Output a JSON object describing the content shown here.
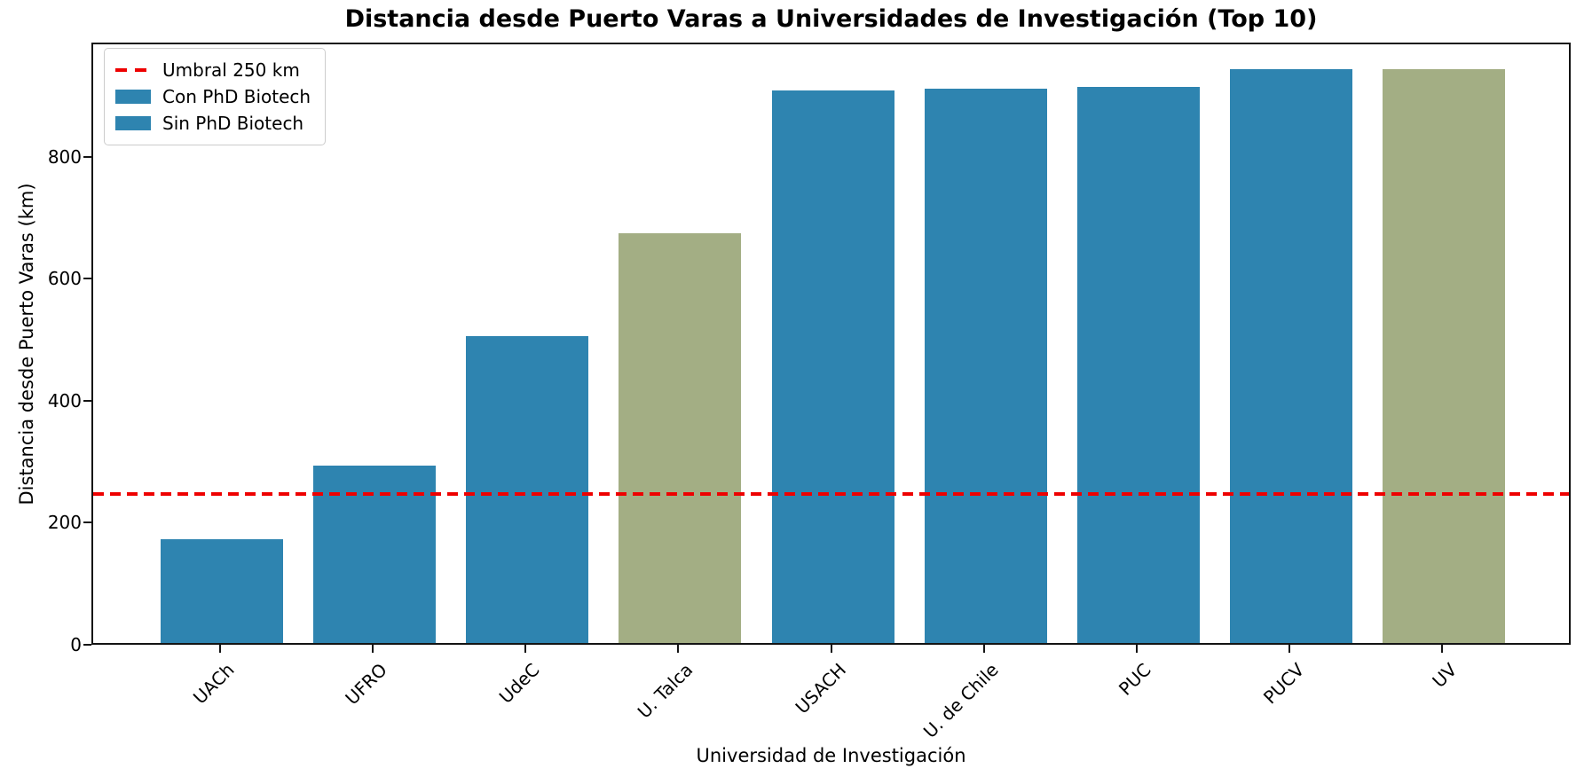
{
  "chart_data": {
    "type": "bar",
    "title": "Distancia desde Puerto Varas a Universidades de Investigación (Top 10)",
    "xlabel": "Universidad de Investigación",
    "ylabel": "Distancia desde Puerto Varas (km)",
    "categories": [
      "UACh",
      "UFRO",
      "UdeC",
      "U. Talca",
      "USACH",
      "U. de Chile",
      "PUC",
      "PUCV",
      "UV"
    ],
    "values": [
      170,
      290,
      503,
      672,
      905,
      908,
      912,
      940,
      940
    ],
    "bar_color_keys": [
      "blue",
      "blue",
      "blue",
      "green",
      "blue",
      "blue",
      "blue",
      "blue",
      "green"
    ],
    "colors": {
      "blue": "#2e84b0",
      "green": "#a3ae84",
      "threshold": "#ee0000",
      "spine": "#141414"
    },
    "threshold": {
      "value": 250,
      "label": "Umbral 250 km"
    },
    "legend": {
      "position": "upper-left",
      "entries": [
        {
          "sample": "dashed-line",
          "color_key": "threshold",
          "label": "Umbral 250 km"
        },
        {
          "sample": "patch",
          "color_key": "blue",
          "label": "Con PhD Biotech"
        },
        {
          "sample": "patch",
          "color_key": "blue",
          "label": "Sin PhD Biotech"
        }
      ]
    },
    "ylim": [
      0,
      987
    ],
    "yticks": [
      0,
      200,
      400,
      600,
      800
    ],
    "grid": false
  }
}
